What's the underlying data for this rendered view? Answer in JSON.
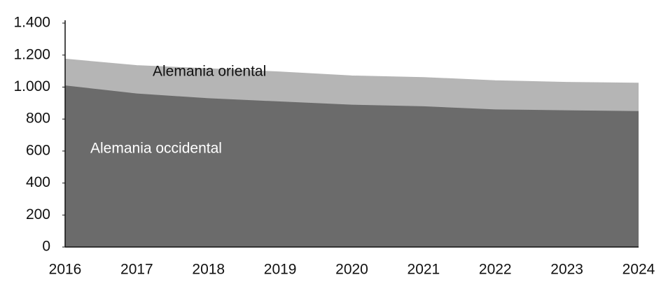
{
  "chart_data": {
    "type": "stacked_area",
    "categories": [
      "2016",
      "2017",
      "2018",
      "2019",
      "2020",
      "2021",
      "2022",
      "2023",
      "2024"
    ],
    "series": [
      {
        "name": "Alemania occidental",
        "color": "#6b6b6b",
        "values": [
          1010,
          960,
          930,
          910,
          890,
          880,
          860,
          855,
          850
        ]
      },
      {
        "name": "Alemania oriental",
        "color": "#b5b5b5",
        "values": [
          165,
          175,
          185,
          185,
          180,
          180,
          180,
          175,
          175
        ]
      }
    ],
    "ylim": [
      0,
      1400
    ],
    "yticks": [
      0,
      200,
      400,
      600,
      800,
      {
        "value": 1000,
        "label": "1.000"
      },
      {
        "value": 1200,
        "label": "1.200"
      },
      {
        "value": 1400,
        "label": "1.400"
      }
    ],
    "grid": false
  }
}
